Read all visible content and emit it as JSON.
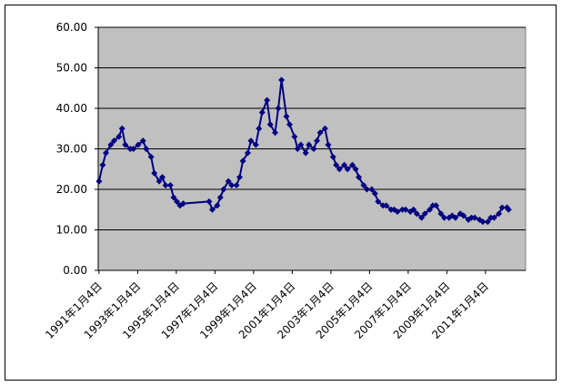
{
  "chart_data": {
    "type": "line",
    "x": [
      "1991-01-04",
      "1991-03-15",
      "1991-05-15",
      "1991-08-15",
      "1991-10-15",
      "1992-01-15",
      "1992-03-15",
      "1992-05-15",
      "1992-08-15",
      "1992-10-15",
      "1993-01-15",
      "1993-04-15",
      "1993-06-15",
      "1993-09-15",
      "1993-11-15",
      "1994-02-15",
      "1994-04-15",
      "1994-06-15",
      "1994-09-15",
      "1994-11-15",
      "1995-01-15",
      "1995-03-15",
      "1995-05-15",
      "1996-09-15",
      "1996-11-15",
      "1997-02-15",
      "1997-04-15",
      "1997-06-15",
      "1997-09-15",
      "1997-11-15",
      "1998-02-15",
      "1998-04-15",
      "1998-06-15",
      "1998-09-15",
      "1998-11-15",
      "1999-02-15",
      "1999-04-15",
      "1999-06-15",
      "1999-09-15",
      "1999-11-15",
      "2000-02-15",
      "2000-04-15",
      "2000-06-15",
      "2000-09-15",
      "2000-11-15",
      "2001-02-15",
      "2001-04-15",
      "2001-06-15",
      "2001-09-15",
      "2001-11-15",
      "2002-02-15",
      "2002-04-15",
      "2002-06-15",
      "2002-09-15",
      "2002-11-15",
      "2003-02-15",
      "2003-04-15",
      "2003-06-15",
      "2003-09-15",
      "2003-11-15",
      "2004-02-15",
      "2004-04-15",
      "2004-06-15",
      "2004-09-15",
      "2004-11-15",
      "2005-02-15",
      "2005-04-15",
      "2005-06-15",
      "2005-09-15",
      "2005-11-15",
      "2006-02-15",
      "2006-04-15",
      "2006-06-15",
      "2006-09-15",
      "2006-11-15",
      "2007-02-15",
      "2007-04-15",
      "2007-06-15",
      "2007-09-15",
      "2007-11-15",
      "2008-02-15",
      "2008-04-15",
      "2008-06-15",
      "2008-09-15",
      "2008-11-15",
      "2009-02-15",
      "2009-04-15",
      "2009-06-15",
      "2009-09-15",
      "2009-11-15",
      "2010-02-15",
      "2010-04-15",
      "2010-06-15",
      "2010-09-15",
      "2010-11-15",
      "2011-02-15",
      "2011-04-15",
      "2011-06-15",
      "2011-09-15",
      "2011-11-15",
      "2012-02-15",
      "2012-03-15"
    ],
    "series": [
      {
        "color": "#000080",
        "values": [
          22,
          26,
          29,
          31,
          32,
          33,
          35,
          31,
          30,
          30,
          31,
          32,
          30,
          28,
          24,
          22,
          23,
          21,
          21,
          18,
          17,
          16,
          16.5,
          17,
          15,
          16,
          18,
          20,
          22,
          21,
          21,
          23,
          27,
          29,
          32,
          31,
          35,
          39,
          42,
          36,
          34,
          40,
          47,
          38,
          36,
          33,
          30,
          31,
          29,
          31,
          30,
          32,
          34,
          35,
          31,
          28,
          26,
          25,
          26,
          25,
          26,
          25,
          23,
          21,
          20,
          20,
          19,
          17,
          16,
          16,
          15,
          15,
          14.5,
          15,
          15,
          14.5,
          15,
          14,
          13,
          14,
          15,
          16,
          16,
          14,
          13,
          13,
          13.5,
          13,
          14,
          13.5,
          12.5,
          13,
          13,
          12.5,
          12,
          12,
          13,
          13,
          14,
          15.5,
          15.5,
          15
        ]
      }
    ],
    "xlim": [
      "1990-12-20",
      "2013-02-01"
    ],
    "xticks": [
      {
        "value": "1991-01-04",
        "label": "1991年1月4日"
      },
      {
        "value": "1993-01-04",
        "label": "1993年1月4日"
      },
      {
        "value": "1995-01-04",
        "label": "1995年1月4日"
      },
      {
        "value": "1997-01-04",
        "label": "1997年1月4日"
      },
      {
        "value": "1999-01-04",
        "label": "1999年1月4日"
      },
      {
        "value": "2001-01-04",
        "label": "2001年1月4日"
      },
      {
        "value": "2003-01-04",
        "label": "2003年1月4日"
      },
      {
        "value": "2005-01-04",
        "label": "2005年1月4日"
      },
      {
        "value": "2007-01-04",
        "label": "2007年1月4日"
      },
      {
        "value": "2009-01-04",
        "label": "2009年1月4日"
      },
      {
        "value": "2011-01-04",
        "label": "2011年1月4日"
      }
    ],
    "ylim": [
      0,
      60
    ],
    "yticks": [
      {
        "value": 0,
        "label": "0.00"
      },
      {
        "value": 10,
        "label": "10.00"
      },
      {
        "value": 20,
        "label": "20.00"
      },
      {
        "value": 30,
        "label": "30.00"
      },
      {
        "value": 40,
        "label": "40.00"
      },
      {
        "value": 50,
        "label": "50.00"
      },
      {
        "value": 60,
        "label": "60.00"
      }
    ],
    "grid": true,
    "plot_background": "#c0c0c0"
  }
}
